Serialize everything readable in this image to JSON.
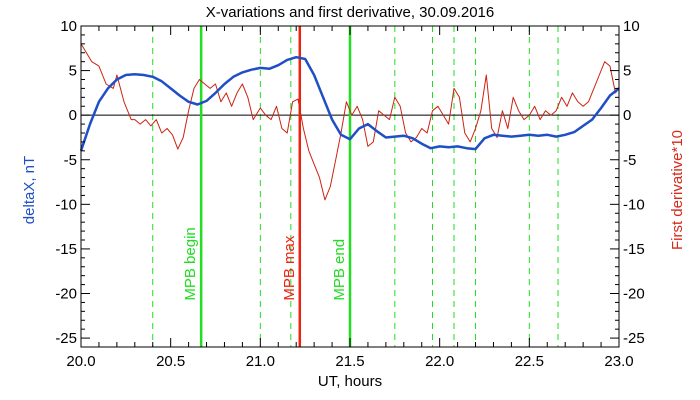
{
  "chart_data": {
    "type": "line",
    "title": "X-variations and first derivative, 30.09.2016",
    "xlabel": "UT, hours",
    "ylabel_left": "deltaX, nT",
    "ylabel_right": "First derivative*10",
    "xlim": [
      20.0,
      23.0
    ],
    "ylim": [
      -26,
      10
    ],
    "x_ticks": [
      20.0,
      20.5,
      21.0,
      21.5,
      22.0,
      22.5,
      23.0
    ],
    "x_tick_labels": [
      "20.0",
      "20.5",
      "21.0",
      "21.5",
      "22.0",
      "22.5",
      "23.0"
    ],
    "y_ticks": [
      10,
      5,
      0,
      -5,
      -10,
      -15,
      -20,
      -25
    ],
    "y_tick_labels": [
      "10",
      "5",
      "0",
      "-5",
      "-10",
      "-15",
      "-20",
      "-25"
    ],
    "zero_line": true,
    "dashed_lines_x": [
      20.4,
      21.0,
      21.17,
      21.75,
      21.96,
      22.08,
      22.2,
      22.5,
      22.66
    ],
    "markers": [
      {
        "x": 20.67,
        "label": "MPB begin",
        "color": "#22dd22"
      },
      {
        "x": 21.22,
        "label": "MPB max",
        "color": "#ee2211"
      },
      {
        "x": 21.5,
        "label": "MPB end",
        "color": "#22dd22"
      }
    ],
    "series": [
      {
        "name": "deltaX, nT",
        "color": "#1f4fc7",
        "x": [
          20.0,
          20.05,
          20.1,
          20.15,
          20.2,
          20.25,
          20.3,
          20.35,
          20.4,
          20.45,
          20.5,
          20.55,
          20.6,
          20.65,
          20.7,
          20.75,
          20.8,
          20.85,
          20.9,
          20.95,
          21.0,
          21.05,
          21.1,
          21.15,
          21.2,
          21.25,
          21.3,
          21.35,
          21.4,
          21.45,
          21.5,
          21.55,
          21.6,
          21.65,
          21.7,
          21.75,
          21.8,
          21.85,
          21.9,
          21.95,
          22.0,
          22.05,
          22.1,
          22.15,
          22.2,
          22.25,
          22.3,
          22.35,
          22.4,
          22.45,
          22.5,
          22.55,
          22.6,
          22.65,
          22.7,
          22.75,
          22.8,
          22.85,
          22.9,
          22.95,
          23.0
        ],
        "values": [
          -4.0,
          -1.0,
          1.5,
          3.0,
          4.0,
          4.5,
          4.6,
          4.5,
          4.3,
          3.8,
          3.0,
          2.2,
          1.5,
          1.2,
          1.6,
          2.5,
          3.5,
          4.3,
          4.8,
          5.1,
          5.3,
          5.2,
          5.6,
          6.2,
          6.5,
          6.3,
          4.5,
          2.0,
          -0.5,
          -2.2,
          -2.7,
          -1.5,
          -1.0,
          -1.8,
          -2.5,
          -2.4,
          -2.3,
          -2.6,
          -3.2,
          -3.7,
          -3.5,
          -3.6,
          -3.5,
          -3.7,
          -3.8,
          -2.6,
          -2.2,
          -2.3,
          -2.4,
          -2.3,
          -2.2,
          -2.3,
          -2.2,
          -2.4,
          -2.2,
          -1.9,
          -1.2,
          -0.5,
          0.8,
          2.2,
          3.0
        ]
      },
      {
        "name": "First derivative*10",
        "color": "#cc2211",
        "x": [
          20.0,
          20.03,
          20.06,
          20.1,
          20.14,
          20.18,
          20.2,
          20.24,
          20.28,
          20.3,
          20.33,
          20.36,
          20.39,
          20.42,
          20.45,
          20.48,
          20.51,
          20.54,
          20.57,
          20.6,
          20.63,
          20.66,
          20.69,
          20.72,
          20.75,
          20.78,
          20.81,
          20.84,
          20.87,
          20.9,
          20.93,
          20.96,
          21.0,
          21.03,
          21.06,
          21.09,
          21.12,
          21.15,
          21.18,
          21.21,
          21.24,
          21.27,
          21.3,
          21.33,
          21.36,
          21.39,
          21.42,
          21.45,
          21.48,
          21.51,
          21.54,
          21.57,
          21.6,
          21.63,
          21.66,
          21.69,
          21.72,
          21.75,
          21.78,
          21.81,
          21.84,
          21.87,
          21.9,
          21.93,
          21.96,
          21.99,
          22.02,
          22.05,
          22.08,
          22.11,
          22.14,
          22.17,
          22.2,
          22.23,
          22.26,
          22.29,
          22.32,
          22.35,
          22.38,
          22.41,
          22.44,
          22.47,
          22.5,
          22.53,
          22.56,
          22.59,
          22.62,
          22.65,
          22.68,
          22.71,
          22.74,
          22.77,
          22.8,
          22.83,
          22.86,
          22.89,
          22.92,
          22.95,
          22.98,
          23.0
        ],
        "values": [
          8.0,
          7.0,
          6.0,
          5.5,
          3.5,
          3.0,
          4.5,
          1.5,
          -0.5,
          -0.5,
          -1.0,
          -0.5,
          -1.2,
          -0.5,
          -2.0,
          -1.5,
          -2.2,
          -3.8,
          -2.5,
          0.5,
          3.0,
          4.0,
          3.5,
          3.0,
          3.5,
          1.5,
          2.5,
          1.0,
          2.5,
          3.5,
          2.0,
          -0.5,
          0.8,
          0.0,
          -0.5,
          1.0,
          -1.5,
          -2.0,
          1.5,
          1.8,
          -1.5,
          -4.0,
          -5.5,
          -7.0,
          -9.5,
          -8.0,
          -5.0,
          -2.0,
          1.5,
          0.0,
          1.0,
          -0.5,
          -3.5,
          -3.0,
          0.5,
          0.0,
          -0.5,
          2.0,
          1.0,
          -2.0,
          -3.0,
          -2.5,
          -1.5,
          -2.0,
          0.5,
          1.0,
          0.0,
          -1.0,
          3.0,
          2.0,
          -2.0,
          -3.0,
          -1.5,
          0.5,
          4.5,
          -1.5,
          -2.5,
          0.5,
          -1.5,
          2.0,
          0.5,
          -0.5,
          0.0,
          1.0,
          -0.5,
          0.5,
          0.0,
          0.5,
          2.0,
          1.0,
          2.5,
          1.5,
          1.0,
          1.5,
          3.0,
          4.5,
          6.0,
          5.5,
          2.5,
          3.0
        ]
      }
    ]
  }
}
